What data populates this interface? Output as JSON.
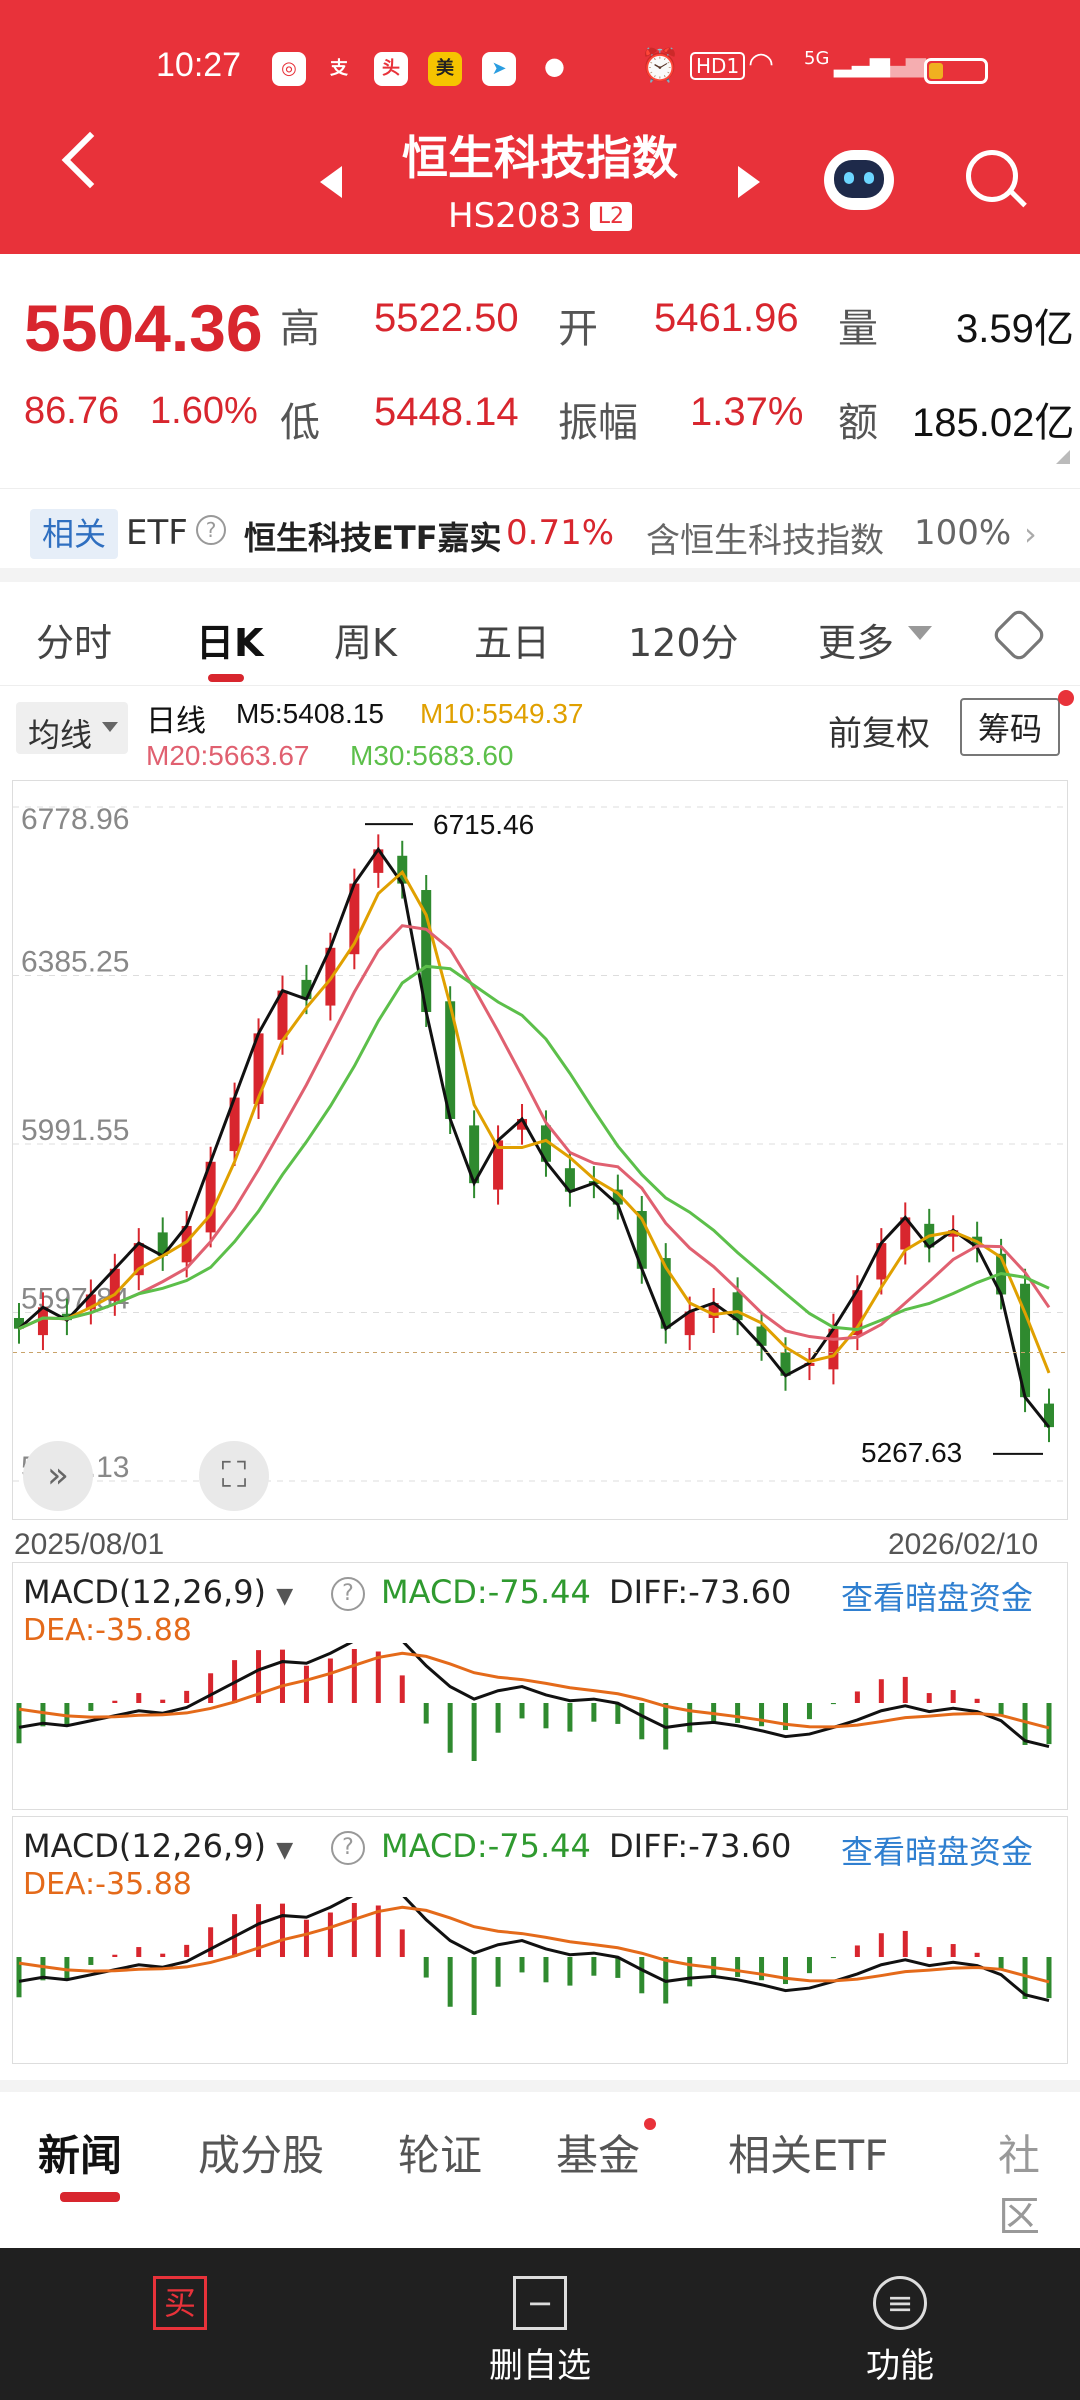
{
  "status_bar": {
    "time": "10:27",
    "network": "5G",
    "hd": "HD1",
    "battery_level": 0.25
  },
  "header": {
    "title": "恒生科技指数",
    "code": "HS2083",
    "badge": "L2"
  },
  "quote": {
    "price": "5504.36",
    "change": "86.76",
    "change_pct": "1.60%",
    "high_label": "高",
    "high": "5522.50",
    "open_label": "开",
    "open": "5461.96",
    "volume_label": "量",
    "volume": "3.59亿",
    "low_label": "低",
    "low": "5448.14",
    "amplitude_label": "振幅",
    "amplitude": "1.37%",
    "amount_label": "额",
    "amount": "185.02亿"
  },
  "etf_bar": {
    "tag": "相关",
    "etf": "ETF",
    "fund_name": "恒生科技ETF嘉实",
    "fund_change": "0.71%",
    "contains_text": "含恒生科技指数",
    "contains_pct": "100%"
  },
  "tabs": [
    "分时",
    "日K",
    "周K",
    "五日",
    "120分",
    "更多"
  ],
  "active_tab": "日K",
  "chart_toolbar": {
    "indicator": "均线",
    "period": "日线",
    "m5": "M5:5408.15",
    "m10": "M10:5549.37",
    "m20": "M20:5663.67",
    "m30": "M30:5683.60",
    "adjust": "前复权",
    "chips": "筹码"
  },
  "chart_data": {
    "type": "line",
    "y_ticks": [
      "6778.96",
      "6385.25",
      "5991.55",
      "5597.84",
      "5204.13"
    ],
    "ylim": [
      5204.13,
      6778.96
    ],
    "x_labels": [
      "2025/08/01",
      "2026/02/10"
    ],
    "high_annotation": "6715.46",
    "low_annotation": "5267.63",
    "close_series": [
      5560,
      5610,
      5580,
      5640,
      5700,
      5760,
      5730,
      5800,
      5950,
      6100,
      6250,
      6350,
      6330,
      6450,
      6600,
      6680,
      6600,
      6300,
      6050,
      5900,
      6000,
      6050,
      5950,
      5880,
      5900,
      5850,
      5700,
      5560,
      5600,
      5620,
      5580,
      5520,
      5450,
      5480,
      5560,
      5650,
      5760,
      5820,
      5750,
      5790,
      5750,
      5640,
      5400,
      5330
    ]
  },
  "macd_panels": [
    {
      "label": "MACD(12,26,9)",
      "macd": "MACD:-75.44",
      "diff": "DIFF:-73.60",
      "dea": "DEA:-35.88",
      "link": "查看暗盘资金"
    },
    {
      "label": "MACD(12,26,9)",
      "macd": "MACD:-75.44",
      "diff": "DIFF:-73.60",
      "dea": "DEA:-35.88",
      "link": "查看暗盘资金"
    }
  ],
  "bottom_tabs": [
    "新闻",
    "成分股",
    "轮证",
    "基金",
    "相关ETF",
    "社区"
  ],
  "footer": {
    "buy": "买",
    "delete_watch": "删自选",
    "functions": "功能"
  },
  "colors": {
    "brand_red": "#e8323a",
    "up_red": "#d8262e",
    "down_green": "#2f8a2f",
    "m5": "#111111",
    "m10": "#e0a000",
    "m20": "#e06070",
    "m30": "#5cbf4a"
  }
}
